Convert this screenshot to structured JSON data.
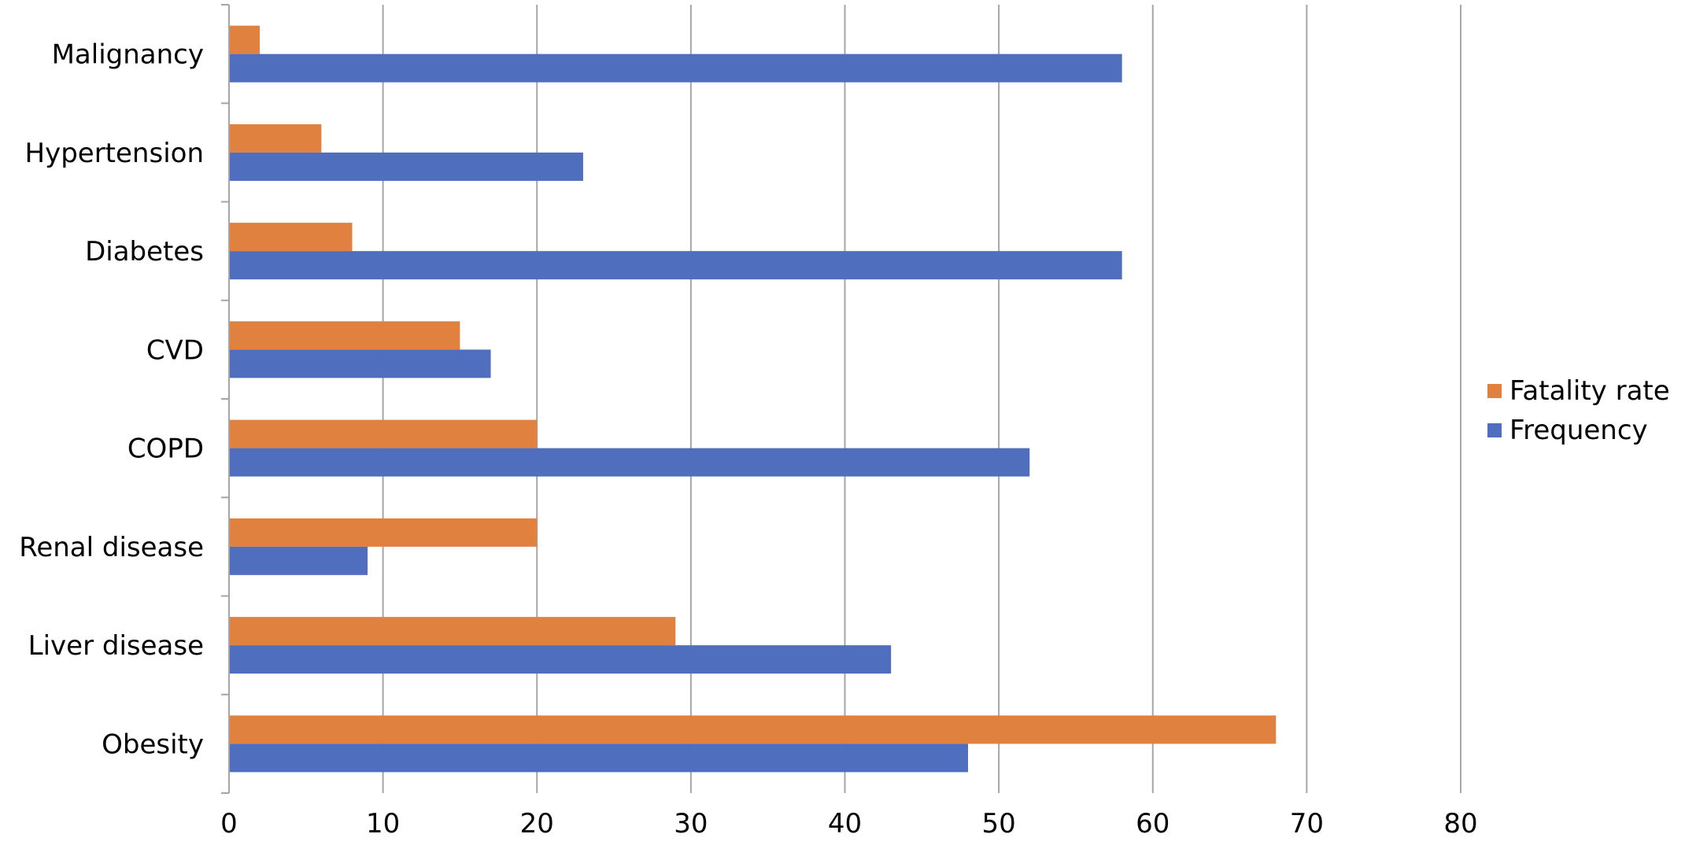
{
  "chart_data": {
    "type": "bar",
    "orientation": "horizontal",
    "categories": [
      "Obesity",
      "Liver disease",
      "Renal disease",
      "COPD",
      "CVD",
      "Diabetes",
      "Hypertension",
      "Malignancy"
    ],
    "series": [
      {
        "name": "Fatality rate",
        "color": "#E0813F",
        "values": [
          68,
          29,
          20,
          20,
          15,
          8,
          6,
          2
        ]
      },
      {
        "name": "Frequency",
        "color": "#4F6FBE",
        "values": [
          48,
          43,
          9,
          52,
          17,
          58,
          23,
          58
        ]
      }
    ],
    "xlim": [
      0,
      80
    ],
    "xticks": [
      "0",
      "10",
      "20",
      "30",
      "40",
      "50",
      "60",
      "70",
      "80"
    ],
    "grid": "vertical",
    "legend": "right",
    "colors": {
      "gridline": "#A6A6A6",
      "axis": "#A6A6A6"
    }
  }
}
